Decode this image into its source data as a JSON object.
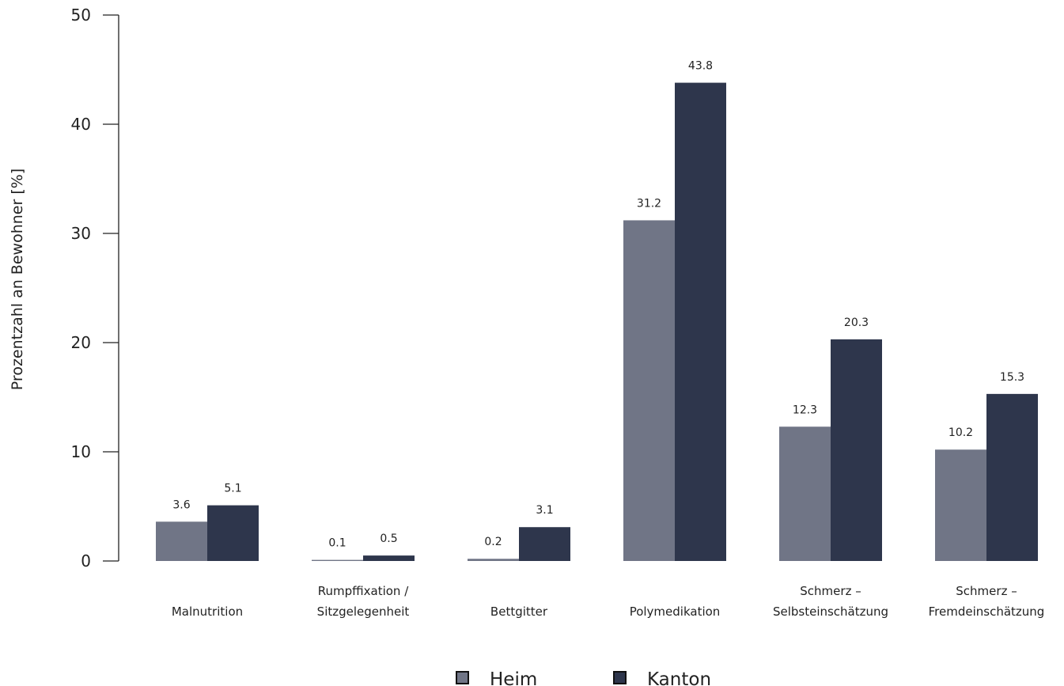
{
  "chart_data": {
    "type": "bar",
    "title": "",
    "xlabel": "",
    "ylabel": "Prozentzahl an Bewohner [%]",
    "ylim": [
      0,
      50
    ],
    "yticks": [
      0,
      10,
      20,
      30,
      40,
      50
    ],
    "grid": false,
    "legend_position": "bottom",
    "categories": [
      [
        "Malnutrition"
      ],
      [
        "Rumpffixation /",
        "Sitzgelegenheit"
      ],
      [
        "Bettgitter"
      ],
      [
        "Polymedikation"
      ],
      [
        "Schmerz –",
        "Selbsteinschätzung"
      ],
      [
        "Schmerz –",
        "Fremdeinschätzung"
      ]
    ],
    "series": [
      {
        "name": "Heim",
        "color": "#707586",
        "values": [
          3.6,
          0.1,
          0.2,
          31.2,
          12.3,
          10.2
        ],
        "labels": [
          "3.6",
          "0.1",
          "0.2",
          "31.2",
          "12.3",
          "10.2"
        ]
      },
      {
        "name": "Kanton",
        "color": "#2e364c",
        "values": [
          5.1,
          0.5,
          3.1,
          43.8,
          20.3,
          15.3
        ],
        "labels": [
          "5.1",
          "0.5",
          "3.1",
          "43.8",
          "20.3",
          "15.3"
        ]
      }
    ]
  }
}
